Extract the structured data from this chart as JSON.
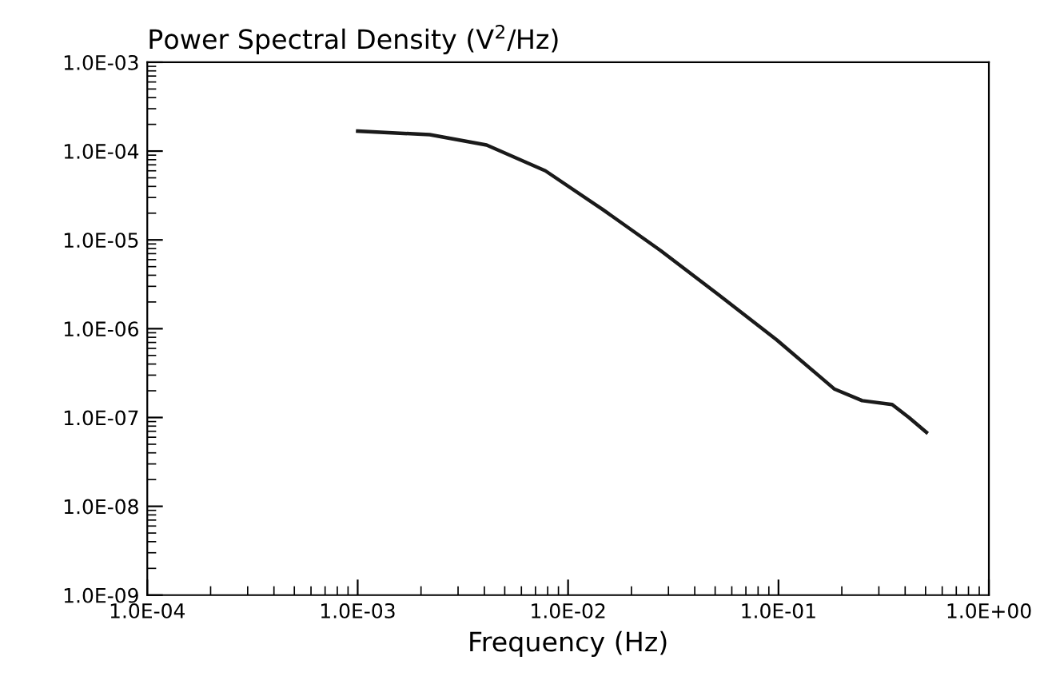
{
  "chart_data": {
    "type": "line",
    "title": "Power Spectral Density (V$^{2}$/Hz)",
    "xlabel": "Frequency (Hz)",
    "log": "xy",
    "x": [
      0.001,
      0.0022,
      0.0041,
      0.0078,
      0.0146,
      0.0275,
      0.052,
      0.098,
      0.184,
      0.25,
      0.347,
      0.417,
      0.505
    ],
    "series": [
      {
        "color": "#1a1a1a",
        "values": [
          0.000168,
          0.000153,
          0.000117,
          6e-05,
          2.2e-05,
          7.6e-06,
          2.4e-06,
          7.5e-07,
          2.1e-07,
          1.55e-07,
          1.4e-07,
          1e-07,
          6.8e-08
        ]
      }
    ],
    "xlim": [
      0.0001,
      1
    ],
    "ylim": [
      1e-09,
      0.001
    ],
    "xticks": [
      {
        "value": 0.0001,
        "label": "1.0E-04"
      },
      {
        "value": 0.001,
        "label": "1.0E-03"
      },
      {
        "value": 0.01,
        "label": "1.0E-02"
      },
      {
        "value": 0.1,
        "label": "1.0E-01"
      },
      {
        "value": 1,
        "label": "1.0E+00"
      }
    ],
    "yticks": [
      {
        "value": 1e-09,
        "label": "1.0E-09"
      },
      {
        "value": 1e-08,
        "label": "1.0E-08"
      },
      {
        "value": 1e-07,
        "label": "1.0E-07"
      },
      {
        "value": 1e-06,
        "label": "1.0E-06"
      },
      {
        "value": 1e-05,
        "label": "1.0E-05"
      },
      {
        "value": 0.0001,
        "label": "1.0E-04"
      },
      {
        "value": 0.001,
        "label": "1.0E-03"
      }
    ],
    "marker": "none",
    "line_style": "solid"
  }
}
